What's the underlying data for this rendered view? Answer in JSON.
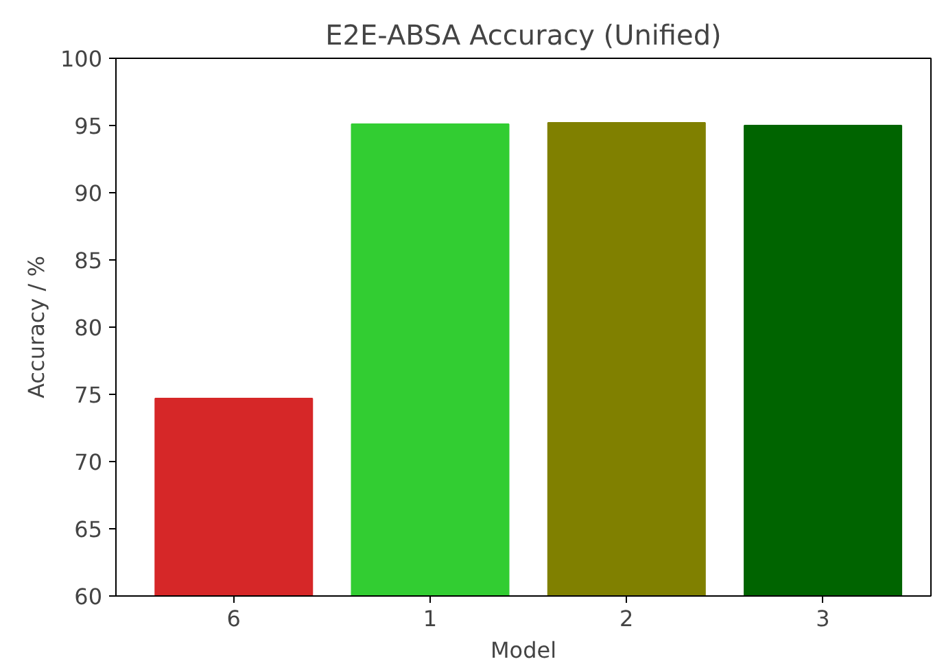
{
  "chart_data": {
    "type": "bar",
    "title": "E2E-ABSA Accuracy (Unified)",
    "xlabel": "Model",
    "ylabel": "Accuracy / %",
    "categories": [
      "6",
      "1",
      "2",
      "3"
    ],
    "values": [
      74.7,
      95.1,
      95.2,
      95.0
    ],
    "colors": [
      "#d62728",
      "#32cd32",
      "#808000",
      "#006400"
    ],
    "ylim": [
      60,
      100
    ],
    "yticks": [
      60,
      65,
      70,
      75,
      80,
      85,
      90,
      95,
      100
    ],
    "grid": false
  }
}
